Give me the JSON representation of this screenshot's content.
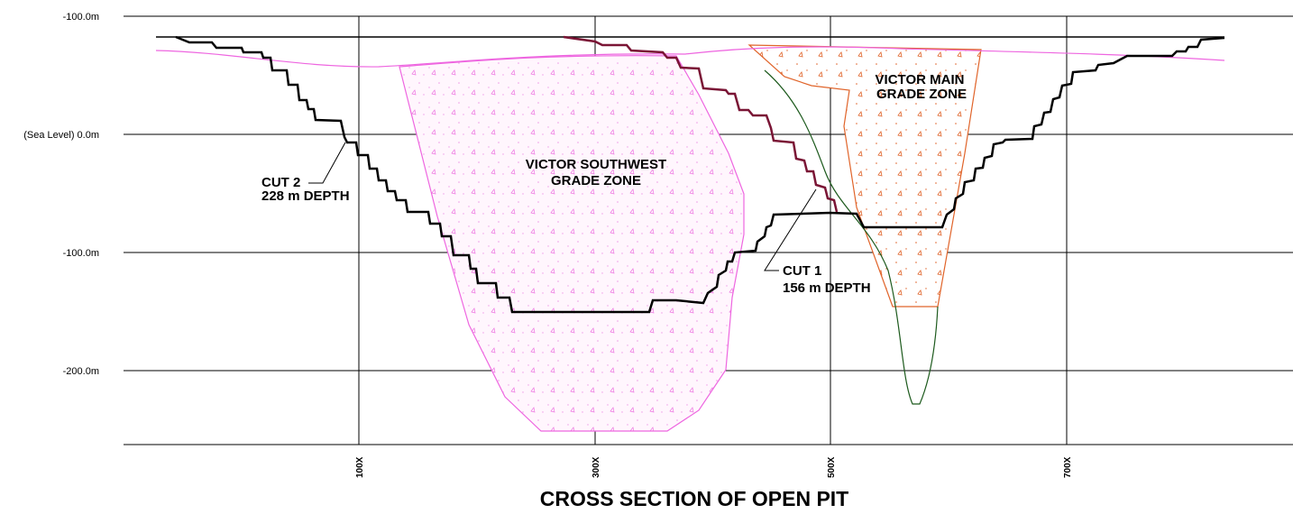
{
  "title": "CROSS SECTION OF OPEN PIT",
  "elevation_labels": [
    "-100.0m",
    "(Sea Level) 0.0m",
    "-100.0m",
    "-200.0m"
  ],
  "easting_labels": [
    "100X",
    "300X",
    "500X",
    "700X"
  ],
  "zones": [
    {
      "label_lines": [
        "VICTOR SOUTHWEST",
        "GRADE ZONE"
      ]
    },
    {
      "label_lines": [
        "VICTOR MAIN",
        "GRADE ZONE"
      ]
    }
  ],
  "cuts": [
    {
      "name": "CUT 2",
      "depth": "228 m DEPTH"
    },
    {
      "name": "CUT 1",
      "depth": "156 m DEPTH"
    }
  ]
}
